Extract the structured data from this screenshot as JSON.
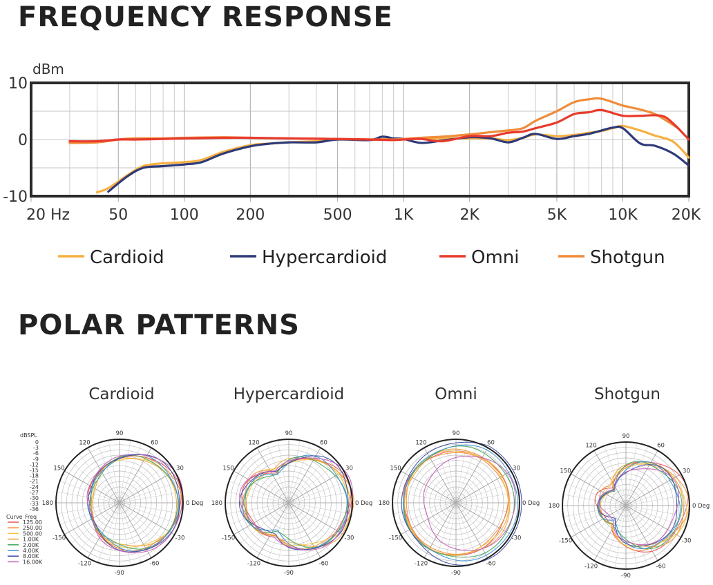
{
  "sections": {
    "frequency_title": "FREQUENCY RESPONSE",
    "polar_title": "POLAR PATTERNS"
  },
  "chart_data": [
    {
      "type": "line",
      "title": "FREQUENCY RESPONSE",
      "ylabel": "dBm",
      "xlabel": "",
      "x_scale": "log",
      "xlim": [
        20,
        20000
      ],
      "ylim": [
        -10,
        10
      ],
      "x_tick_values": [
        20,
        50,
        100,
        200,
        500,
        1000,
        2000,
        5000,
        10000,
        20000
      ],
      "x_tick_labels": [
        "20  Hz",
        "50",
        "100",
        "200",
        "500",
        "1K",
        "2K",
        "5K",
        "10K",
        "20K"
      ],
      "y_tick_values": [
        10,
        0,
        -10
      ],
      "y_tick_labels": [
        "10",
        "0",
        "-10"
      ],
      "grid": true,
      "legend": "bottom",
      "series": [
        {
          "name": "Cardioid",
          "color": "#f5b041",
          "x": [
            40,
            45,
            55,
            65,
            80,
            100,
            120,
            150,
            200,
            250,
            300,
            400,
            500,
            700,
            900,
            1000,
            1500,
            2000,
            2500,
            3000,
            3500,
            4000,
            5000,
            6000,
            7000,
            8000,
            9000,
            10000,
            12000,
            14000,
            17000,
            20000
          ],
          "y": [
            -9.3,
            -8.6,
            -6.3,
            -4.7,
            -4.2,
            -4.0,
            -3.6,
            -2.2,
            -1.0,
            -0.7,
            -0.5,
            -0.3,
            0,
            0,
            0.1,
            0.1,
            0.2,
            0.2,
            0.2,
            -0.1,
            0.3,
            0.9,
            0.6,
            0.8,
            1.2,
            1.5,
            2.0,
            2.4,
            1.6,
            0.7,
            -0.4,
            -3.2
          ]
        },
        {
          "name": "Hypercardioid",
          "color": "#2e3a78",
          "x": [
            45,
            55,
            65,
            80,
            100,
            120,
            150,
            200,
            250,
            300,
            400,
            500,
            700,
            800,
            900,
            1000,
            1200,
            1500,
            2000,
            2500,
            3000,
            3500,
            4000,
            5000,
            6000,
            7000,
            8000,
            9000,
            10000,
            12000,
            14000,
            17000,
            20000
          ],
          "y": [
            -9.2,
            -6.5,
            -5.0,
            -4.7,
            -4.4,
            -4.0,
            -2.5,
            -1.2,
            -0.7,
            -0.5,
            -0.5,
            0,
            -0.1,
            0.5,
            0.2,
            0.1,
            -0.6,
            -0.2,
            0.4,
            0.2,
            -0.5,
            0.3,
            1.0,
            0.1,
            0.6,
            1.0,
            1.6,
            2.1,
            2.0,
            -0.7,
            -1.1,
            -2.5,
            -4.6
          ]
        },
        {
          "name": "Omni",
          "color": "#e83a2c",
          "x": [
            30,
            40,
            50,
            60,
            80,
            100,
            150,
            200,
            300,
            500,
            700,
            900,
            1000,
            1200,
            1500,
            2000,
            2500,
            3000,
            3500,
            4000,
            5000,
            6000,
            7000,
            8000,
            10000,
            12000,
            15000,
            17000,
            20000
          ],
          "y": [
            -0.3,
            -0.3,
            0,
            0,
            0.1,
            0.2,
            0.3,
            0.3,
            0.2,
            0.1,
            0,
            -0.1,
            0,
            0.1,
            -0.3,
            0.6,
            0.6,
            1.2,
            1.4,
            2.0,
            3.0,
            4.5,
            4.8,
            5.2,
            4.2,
            4.2,
            4.2,
            2.8,
            0
          ]
        },
        {
          "name": "Shotgun",
          "color": "#f08c3a",
          "x": [
            30,
            40,
            50,
            60,
            80,
            100,
            150,
            200,
            300,
            500,
            700,
            900,
            1000,
            1200,
            1500,
            2000,
            2500,
            3000,
            3500,
            4000,
            5000,
            6000,
            7000,
            8000,
            10000,
            12000,
            14000,
            16000,
            18000
          ],
          "y": [
            -0.6,
            -0.5,
            0,
            0.2,
            0.2,
            0.3,
            0.4,
            0.3,
            0.2,
            0.1,
            0,
            0,
            0.1,
            0.3,
            0.5,
            0.9,
            1.3,
            1.6,
            2.0,
            3.3,
            5.0,
            6.6,
            7.1,
            7.2,
            6.0,
            5.3,
            4.5,
            3.2,
            1.9
          ]
        }
      ]
    },
    {
      "type": "polar",
      "titles": [
        "Cardioid",
        "Hypercardioid",
        "Omni",
        "Shotgun"
      ],
      "angle_labels": [
        "90",
        "60",
        "30",
        "0 Deg",
        "-30",
        "-60",
        "-90",
        "-120",
        "-150",
        "180",
        "150",
        "120"
      ],
      "scale_title": "dBSPL",
      "scale_values": [
        "0",
        "-3",
        "-6",
        "-9",
        "-12",
        "-15",
        "-18",
        "-21",
        "-24",
        "-27",
        "-30",
        "-33",
        "-36"
      ],
      "legend_headers": [
        "Curve",
        "Freq"
      ],
      "series": [
        {
          "name": "125.00",
          "color": "#e8505b"
        },
        {
          "name": "250.00",
          "color": "#f28a30"
        },
        {
          "name": "500.00",
          "color": "#f5c542"
        },
        {
          "name": "1.00K",
          "color": "#f0a030"
        },
        {
          "name": "2.00K",
          "color": "#3fa55c"
        },
        {
          "name": "4.00K",
          "color": "#3d8fd1"
        },
        {
          "name": "8.00K",
          "color": "#3b4a9e"
        },
        {
          "name": "16.00K",
          "color": "#c35bb6"
        }
      ]
    }
  ]
}
